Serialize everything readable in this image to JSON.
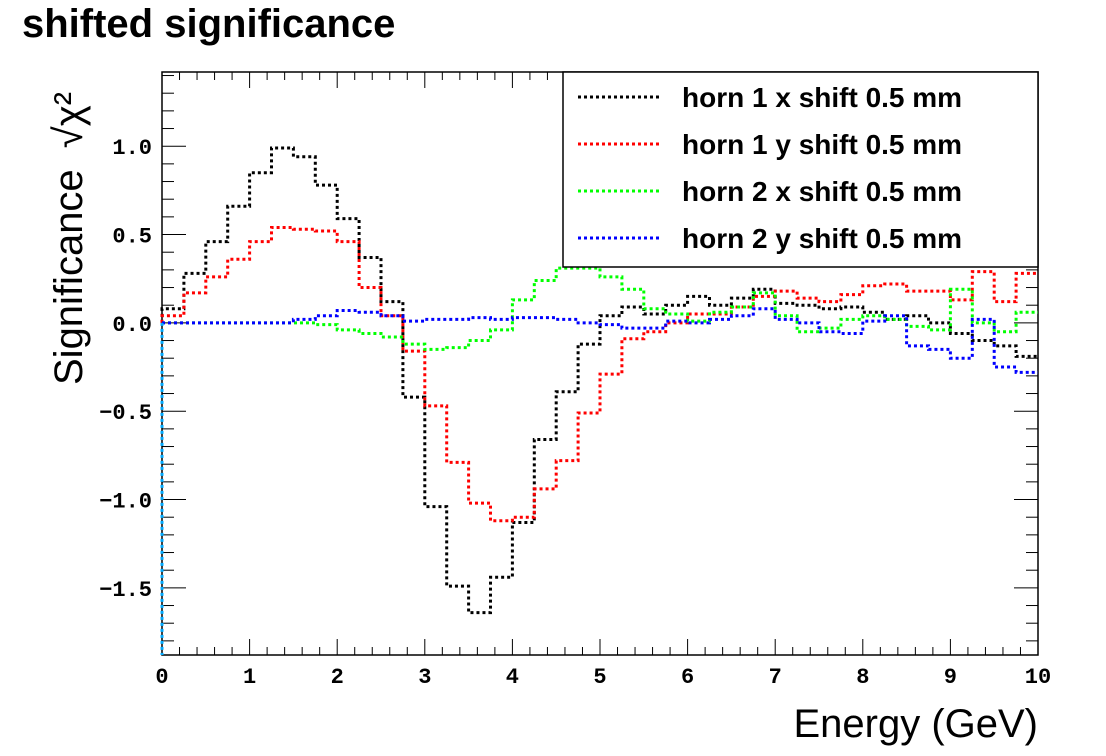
{
  "chart_data": {
    "type": "line",
    "title": "shifted significance",
    "xlabel": "Energy (GeV)",
    "ylabel": "Significance",
    "ylabel_symbol": "√χ²",
    "xlim": [
      0,
      10
    ],
    "ylim": [
      -1.88,
      1.42
    ],
    "grid": false,
    "legend_position": "top-right",
    "bin_edges": [
      0,
      0.25,
      0.5,
      0.75,
      1.0,
      1.25,
      1.5,
      1.75,
      2.0,
      2.25,
      2.5,
      2.75,
      3.0,
      3.25,
      3.5,
      3.75,
      4.0,
      4.25,
      4.5,
      4.75,
      5.0,
      5.25,
      5.5,
      5.75,
      6.0,
      6.25,
      6.5,
      6.75,
      7.0,
      7.25,
      7.5,
      7.75,
      8.0,
      8.25,
      8.5,
      8.75,
      9.0,
      9.25,
      9.5,
      9.75,
      10.0
    ],
    "x_ticks": [
      "0",
      "1",
      "2",
      "3",
      "4",
      "5",
      "6",
      "7",
      "8",
      "9",
      "10"
    ],
    "y_ticks": [
      "−1.5",
      "−1.0",
      "−0.5",
      "0.0",
      "0.5",
      "1.0"
    ],
    "y_tick_values": [
      -1.5,
      -1.0,
      -0.5,
      0.0,
      0.5,
      1.0
    ],
    "series": [
      {
        "name": "horn 1 x shift 0.5 mm",
        "color": "#000000",
        "values": [
          0.08,
          0.28,
          0.46,
          0.66,
          0.85,
          0.99,
          0.94,
          0.78,
          0.59,
          0.37,
          0.12,
          -0.42,
          -1.04,
          -1.49,
          -1.64,
          -1.44,
          -1.13,
          -0.66,
          -0.39,
          -0.12,
          0.04,
          0.09,
          0.05,
          0.1,
          0.15,
          0.1,
          0.14,
          0.19,
          0.11,
          0.1,
          0.08,
          0.09,
          0.06,
          0.02,
          0.04,
          0.0,
          -0.06,
          -0.1,
          -0.13,
          -0.19
        ]
      },
      {
        "name": "horn 1 y shift 0.5 mm",
        "color": "#ff0000",
        "values": [
          0.04,
          0.17,
          0.26,
          0.36,
          0.46,
          0.54,
          0.53,
          0.52,
          0.46,
          0.2,
          0.04,
          -0.16,
          -0.47,
          -0.79,
          -1.02,
          -1.12,
          -1.1,
          -0.94,
          -0.78,
          -0.51,
          -0.29,
          -0.09,
          -0.05,
          0.0,
          0.05,
          0.05,
          0.09,
          0.15,
          0.18,
          0.14,
          0.12,
          0.16,
          0.21,
          0.22,
          0.18,
          0.18,
          0.13,
          0.29,
          0.12,
          0.28
        ]
      },
      {
        "name": "horn 2 x shift 0.5 mm",
        "color": "#00ff00",
        "values": [
          0.0,
          0.0,
          0.0,
          0.0,
          0.0,
          0.0,
          0.0,
          -0.01,
          -0.04,
          -0.06,
          -0.08,
          -0.12,
          -0.15,
          -0.14,
          -0.1,
          -0.04,
          0.13,
          0.24,
          0.31,
          0.31,
          0.26,
          0.19,
          0.08,
          0.05,
          0.01,
          0.06,
          0.09,
          0.17,
          0.04,
          -0.05,
          -0.03,
          0.02,
          0.04,
          0.02,
          -0.02,
          -0.04,
          0.19,
          0.0,
          -0.05,
          0.06
        ]
      },
      {
        "name": "horn 2 y shift 0.5 mm",
        "color": "#0000ff",
        "values": [
          0.0,
          0.0,
          0.0,
          0.0,
          0.0,
          0.0,
          0.02,
          0.04,
          0.07,
          0.06,
          0.04,
          0.01,
          0.02,
          0.02,
          0.03,
          0.02,
          0.03,
          0.03,
          0.02,
          0.0,
          -0.01,
          -0.03,
          -0.03,
          0.01,
          0.0,
          0.02,
          0.04,
          0.08,
          0.02,
          0.0,
          -0.05,
          -0.06,
          0.01,
          0.04,
          -0.13,
          -0.15,
          -0.2,
          0.02,
          -0.25,
          -0.28
        ]
      }
    ]
  }
}
